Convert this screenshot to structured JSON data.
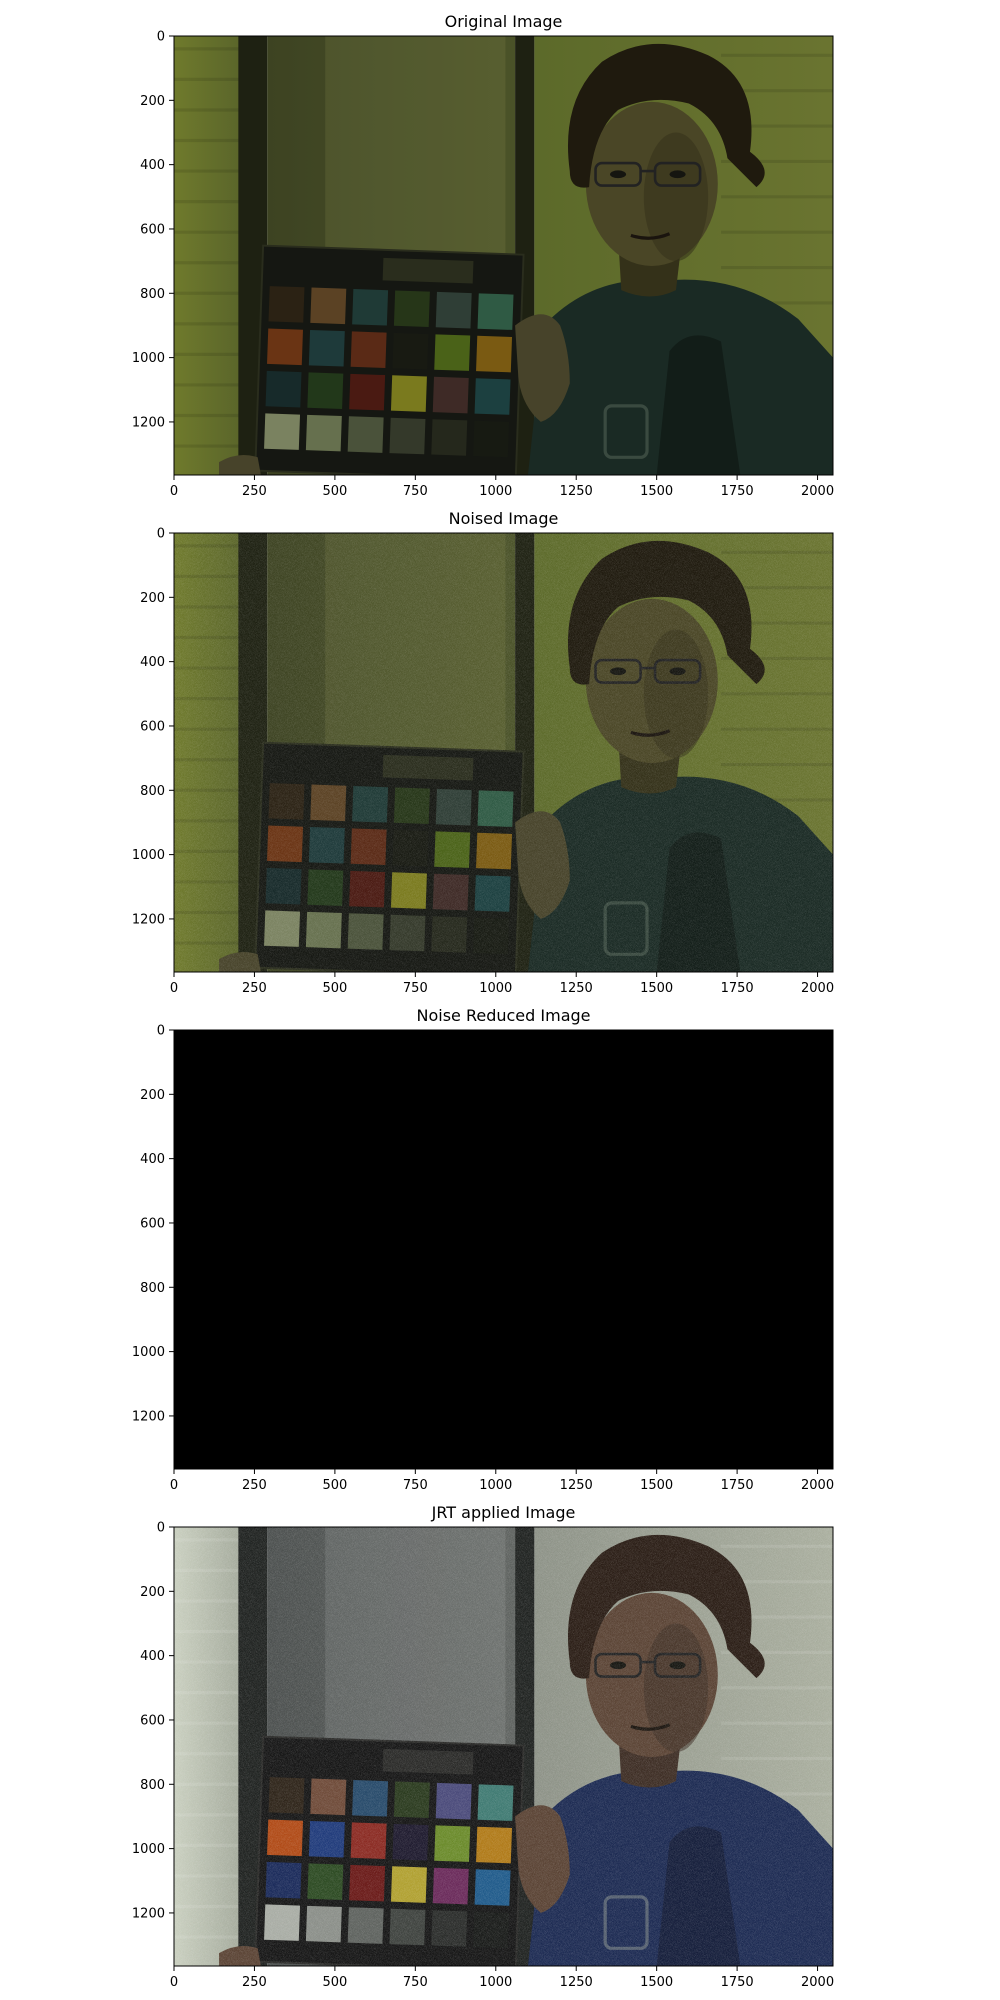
{
  "colors": {
    "background": "#ffffff",
    "axis": "#000000",
    "noise_reduced_fill": "#000000"
  },
  "chart_data": [
    {
      "type": "image",
      "title": "Original Image",
      "content": "photo",
      "variant": "original",
      "xlim": [
        0,
        2048
      ],
      "ylim": [
        1365,
        0
      ],
      "xticks": [
        0,
        250,
        500,
        750,
        1000,
        1250,
        1500,
        1750,
        2000
      ],
      "yticks": [
        0,
        200,
        400,
        600,
        800,
        1000,
        1200
      ]
    },
    {
      "type": "image",
      "title": "Noised Image",
      "content": "photo",
      "variant": "noised",
      "xlim": [
        0,
        2048
      ],
      "ylim": [
        1365,
        0
      ],
      "xticks": [
        0,
        250,
        500,
        750,
        1000,
        1250,
        1500,
        1750,
        2000
      ],
      "yticks": [
        0,
        200,
        400,
        600,
        800,
        1000,
        1200
      ]
    },
    {
      "type": "image",
      "title": "Noise Reduced Image",
      "content": "black",
      "variant": "black",
      "xlim": [
        0,
        2048
      ],
      "ylim": [
        1365,
        0
      ],
      "xticks": [
        0,
        250,
        500,
        750,
        1000,
        1250,
        1500,
        1750,
        2000
      ],
      "yticks": [
        0,
        200,
        400,
        600,
        800,
        1000,
        1200
      ]
    },
    {
      "type": "image",
      "title": "JRT applied Image",
      "content": "photo",
      "variant": "jrt",
      "xlim": [
        0,
        2048
      ],
      "ylim": [
        1365,
        0
      ],
      "xticks": [
        0,
        250,
        500,
        750,
        1000,
        1250,
        1500,
        1750,
        2000
      ],
      "yticks": [
        0,
        200,
        400,
        600,
        800,
        1000,
        1200
      ]
    }
  ]
}
